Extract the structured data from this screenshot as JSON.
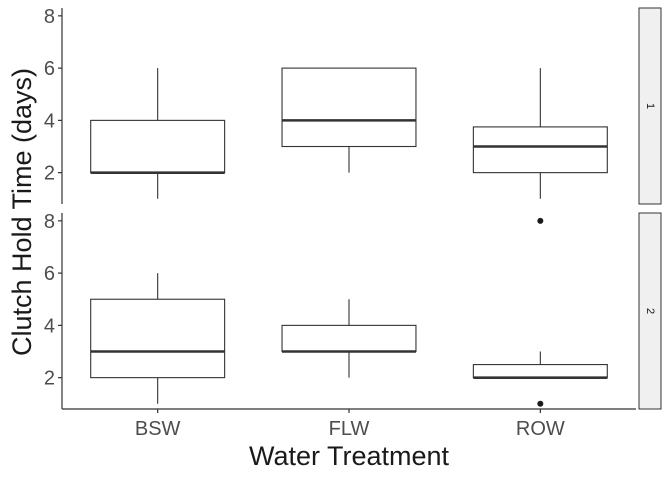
{
  "chart_data": {
    "type": "boxplot",
    "xlabel": "Water Treatment",
    "ylabel": "Clutch Hold Time (days)",
    "categories": [
      "BSW",
      "FLW",
      "ROW"
    ],
    "y_ticks": [
      "2",
      "4",
      "6",
      "8"
    ],
    "ylim": [
      0.8,
      8.3
    ],
    "facet_strip_position": "right",
    "grid": false,
    "panels": [
      {
        "strip_label": "1",
        "boxes": [
          {
            "category": "BSW",
            "whisker_low": 1,
            "q1": 2,
            "median": 2,
            "q3": 4,
            "whisker_high": 6,
            "outliers": []
          },
          {
            "category": "FLW",
            "whisker_low": 2,
            "q1": 3,
            "median": 4,
            "q3": 6,
            "whisker_high": 6,
            "outliers": []
          },
          {
            "category": "ROW",
            "whisker_low": 1,
            "q1": 2,
            "median": 3,
            "q3": 3.75,
            "whisker_high": 6,
            "outliers": []
          }
        ]
      },
      {
        "strip_label": "2",
        "boxes": [
          {
            "category": "BSW",
            "whisker_low": 1,
            "q1": 2,
            "median": 3,
            "q3": 5,
            "whisker_high": 6,
            "outliers": []
          },
          {
            "category": "FLW",
            "whisker_low": 2,
            "q1": 3,
            "median": 3,
            "q3": 4,
            "whisker_high": 5,
            "outliers": []
          },
          {
            "category": "ROW",
            "whisker_low": 2,
            "q1": 2,
            "median": 2,
            "q3": 2.5,
            "whisker_high": 3,
            "outliers": [
              8,
              1
            ]
          }
        ]
      }
    ],
    "colors": {
      "box_stroke": "#333333",
      "box_fill": "#ffffff",
      "median": "#333333",
      "outlier": "#1a1a1a",
      "axis": "#333333",
      "strip_fill": "#f0f0f0",
      "strip_stroke": "#333333"
    }
  }
}
